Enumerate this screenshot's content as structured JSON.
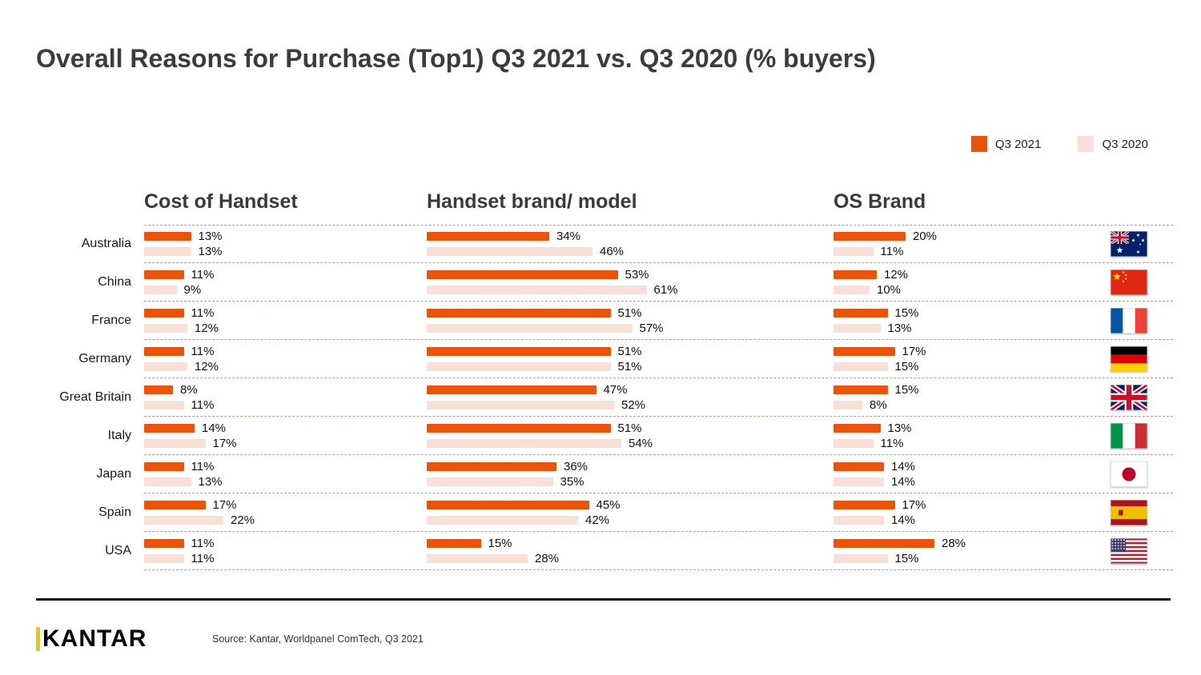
{
  "title": "Overall Reasons for Purchase (Top1) Q3 2021 vs. Q3 2020 (% buyers)",
  "legend": [
    {
      "label": "Q3 2021",
      "color": "#EB530A"
    },
    {
      "label": "Q3 2020",
      "color": "#FADFD6"
    }
  ],
  "footer": {
    "logo": "KANTAR",
    "source": "Source: Kantar, Worldpanel ComTech, Q3 2021"
  },
  "chart_data": {
    "type": "bar",
    "orientation": "horizontal",
    "unit": "%",
    "series_names": [
      "Q3 2021",
      "Q3 2020"
    ],
    "categories": [
      "Australia",
      "China",
      "France",
      "Germany",
      "Great Britain",
      "Italy",
      "Japan",
      "Spain",
      "USA"
    ],
    "flags": [
      "australia",
      "china",
      "france",
      "germany",
      "great-britain",
      "italy",
      "japan",
      "spain",
      "usa"
    ],
    "columns": [
      {
        "title": "Cost of Handset",
        "series": [
          {
            "name": "Q3 2021",
            "values": [
              13,
              11,
              11,
              11,
              8,
              14,
              11,
              17,
              11
            ]
          },
          {
            "name": "Q3 2020",
            "values": [
              13,
              9,
              12,
              12,
              11,
              17,
              13,
              22,
              11
            ]
          }
        ]
      },
      {
        "title": "Handset brand/ model",
        "series": [
          {
            "name": "Q3 2021",
            "values": [
              34,
              53,
              51,
              51,
              47,
              51,
              36,
              45,
              15
            ]
          },
          {
            "name": "Q3 2020",
            "values": [
              46,
              61,
              57,
              51,
              52,
              54,
              35,
              42,
              28
            ]
          }
        ]
      },
      {
        "title": "OS Brand",
        "series": [
          {
            "name": "Q3 2021",
            "values": [
              20,
              12,
              15,
              17,
              15,
              13,
              14,
              17,
              28
            ]
          },
          {
            "name": "Q3 2020",
            "values": [
              11,
              10,
              13,
              15,
              8,
              11,
              14,
              14,
              15
            ]
          }
        ]
      }
    ],
    "value_axis_max": 61,
    "grid": "dashed-row-separators",
    "legend_position": "top-right"
  }
}
